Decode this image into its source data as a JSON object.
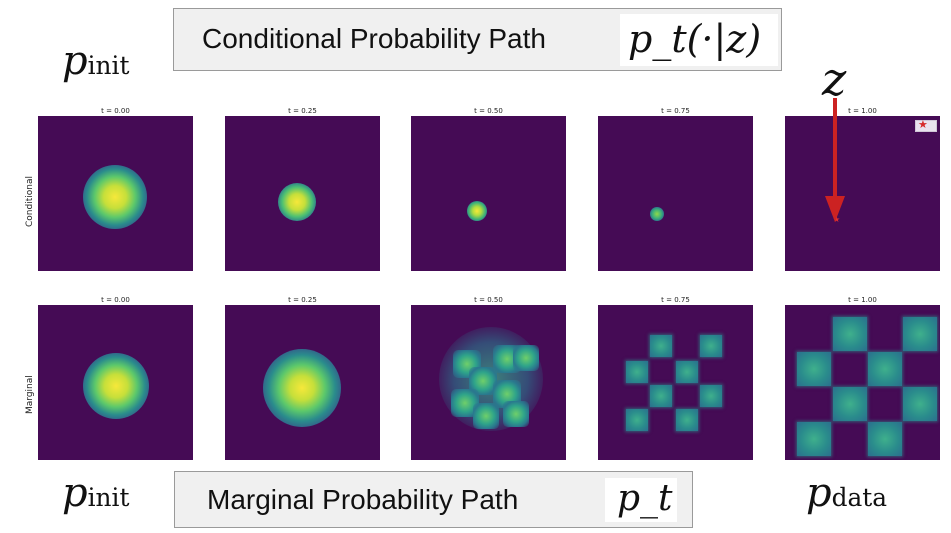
{
  "top_banner": {
    "label": "Conditional Probability Path",
    "math": "p_t(·|z)"
  },
  "bottom_banner": {
    "label": "Marginal Probability Path",
    "math": "p_t"
  },
  "labels": {
    "p_init_top": "p",
    "p_init_top_sub": "init",
    "p_init_bottom": "p",
    "p_init_bottom_sub": "init",
    "p_data": "p",
    "p_data_sub": "data",
    "z": "z"
  },
  "rows": [
    {
      "name": "Conditional",
      "titles": [
        "t = 0.00",
        "t = 0.25",
        "t = 0.50",
        "t = 0.75",
        "t = 1.00"
      ]
    },
    {
      "name": "Marginal",
      "titles": [
        "t = 0.00",
        "t = 0.25",
        "t = 0.50",
        "t = 0.75",
        "t = 1.00"
      ]
    }
  ],
  "colors": {
    "background": "#450b55",
    "arrow": "#cc2222",
    "banner": "#f0f0f0"
  }
}
